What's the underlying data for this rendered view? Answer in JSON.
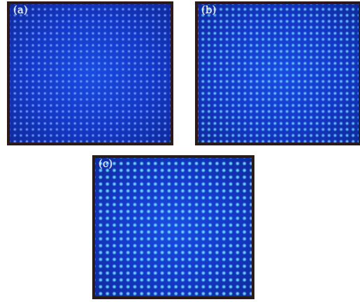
{
  "panels": [
    {
      "label": "(a)"
    },
    {
      "label": "(b)"
    },
    {
      "label": "(c)"
    }
  ],
  "colors": {
    "background": "#1538c6",
    "spot_a": "#96beff",
    "spot_b": "#96e6ff",
    "spot_c": "#a0f0ff",
    "frame": "#2a1a18"
  }
}
